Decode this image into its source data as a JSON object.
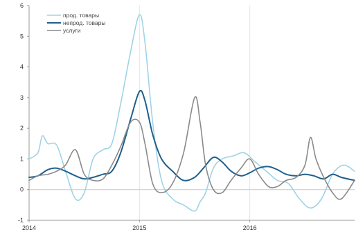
{
  "chart_data": {
    "type": "line",
    "title": "",
    "xlabel": "",
    "ylabel": "",
    "xlim": [
      2014.0,
      2016.95
    ],
    "ylim": [
      -1,
      6
    ],
    "yticks": [
      -1,
      0,
      1,
      2,
      3,
      4,
      5,
      6
    ],
    "xticks": [
      2014,
      2015,
      2016
    ],
    "xtick_labels": [
      "2014",
      "2015",
      "2016"
    ],
    "grid": "vertical lines at year boundaries",
    "legend_position": "top-left",
    "series": [
      {
        "name": "прод. товары",
        "color": "#9fd3e6",
        "x": [
          2014.0,
          2014.08,
          2014.12,
          2014.17,
          2014.25,
          2014.33,
          2014.42,
          2014.5,
          2014.58,
          2014.67,
          2014.75,
          2014.83,
          2014.92,
          2015.0,
          2015.05,
          2015.12,
          2015.2,
          2015.3,
          2015.4,
          2015.5,
          2015.55,
          2015.6,
          2015.67,
          2015.75,
          2015.85,
          2015.95,
          2016.05,
          2016.15,
          2016.25,
          2016.35,
          2016.45,
          2016.55,
          2016.65,
          2016.75,
          2016.85,
          2016.95
        ],
        "y": [
          1.0,
          1.2,
          1.75,
          1.5,
          1.45,
          0.6,
          -0.3,
          -0.1,
          1.0,
          1.3,
          1.5,
          2.8,
          4.5,
          5.7,
          4.8,
          2.2,
          0.3,
          -0.3,
          -0.5,
          -0.7,
          -0.4,
          -0.1,
          0.7,
          1.0,
          1.1,
          1.2,
          0.9,
          0.6,
          0.3,
          0.2,
          -0.3,
          -0.6,
          -0.3,
          0.5,
          0.8,
          0.6
        ]
      },
      {
        "name": "непрод. товары",
        "color": "#1f5f8c",
        "x": [
          2014.0,
          2014.08,
          2014.17,
          2014.25,
          2014.33,
          2014.42,
          2014.5,
          2014.58,
          2014.67,
          2014.75,
          2014.83,
          2014.92,
          2015.0,
          2015.05,
          2015.12,
          2015.2,
          2015.3,
          2015.4,
          2015.5,
          2015.58,
          2015.67,
          2015.75,
          2015.83,
          2015.92,
          2016.0,
          2016.08,
          2016.17,
          2016.25,
          2016.33,
          2016.42,
          2016.5,
          2016.58,
          2016.67,
          2016.75,
          2016.83,
          2016.95
        ],
        "y": [
          0.4,
          0.45,
          0.65,
          0.7,
          0.6,
          0.45,
          0.35,
          0.4,
          0.5,
          0.6,
          1.2,
          2.3,
          3.2,
          2.9,
          1.8,
          1.0,
          0.6,
          0.3,
          0.4,
          0.7,
          1.05,
          0.9,
          0.6,
          0.45,
          0.55,
          0.7,
          0.75,
          0.65,
          0.5,
          0.45,
          0.5,
          0.45,
          0.35,
          0.5,
          0.4,
          0.3
        ]
      },
      {
        "name": "услуги",
        "color": "#8a8a8a",
        "x": [
          2014.0,
          2014.08,
          2014.17,
          2014.25,
          2014.33,
          2014.42,
          2014.5,
          2014.58,
          2014.67,
          2014.75,
          2014.83,
          2014.92,
          2015.0,
          2015.05,
          2015.12,
          2015.2,
          2015.3,
          2015.4,
          2015.5,
          2015.55,
          2015.6,
          2015.67,
          2015.75,
          2015.83,
          2015.92,
          2016.0,
          2016.08,
          2016.17,
          2016.25,
          2016.33,
          2016.42,
          2016.5,
          2016.55,
          2016.6,
          2016.67,
          2016.75,
          2016.83,
          2016.95
        ],
        "y": [
          0.3,
          0.45,
          0.5,
          0.6,
          0.8,
          1.3,
          0.5,
          0.3,
          0.35,
          0.8,
          1.4,
          2.2,
          2.2,
          1.5,
          0.2,
          -0.1,
          0.2,
          1.2,
          3.0,
          2.2,
          0.8,
          0.0,
          -0.1,
          0.3,
          0.7,
          1.0,
          0.5,
          0.1,
          0.1,
          0.3,
          0.4,
          0.8,
          1.7,
          1.0,
          0.4,
          -0.1,
          -0.3,
          0.3
        ]
      }
    ]
  }
}
